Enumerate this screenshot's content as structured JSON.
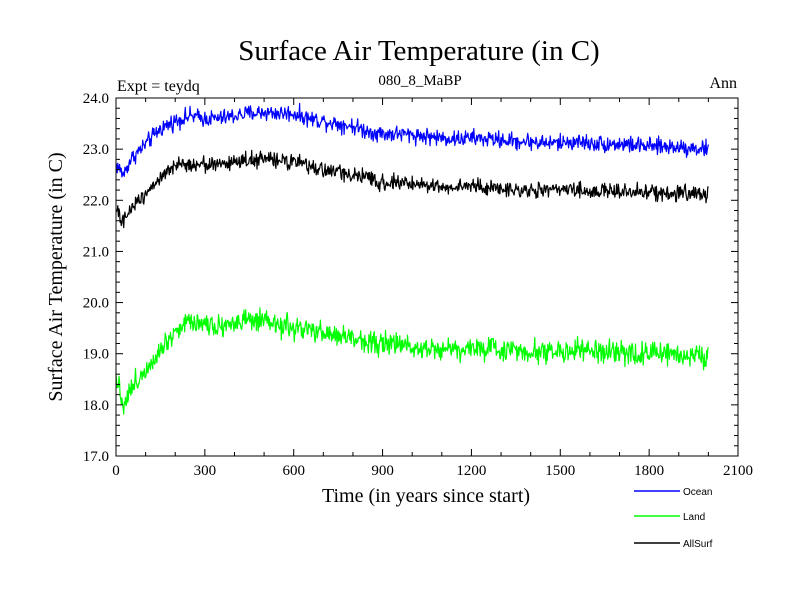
{
  "chart_data": {
    "type": "line",
    "title": "Surface Air Temperature (in C)",
    "subtitle": "080_8_MaBP",
    "experiment_label": "Expt = teydq",
    "period_label": "Ann",
    "xlabel": "Time (in years since start)",
    "ylabel": "Surface Air Temperature (in C)",
    "xlim": [
      0,
      2100
    ],
    "ylim": [
      17.0,
      24.0
    ],
    "x_ticks": [
      0,
      300,
      600,
      900,
      1200,
      1500,
      1800,
      2100
    ],
    "x_tick_labels": [
      "0",
      "300",
      "600",
      "900",
      "1200",
      "1500",
      "1800",
      "2100"
    ],
    "y_ticks": [
      17.0,
      18.0,
      19.0,
      20.0,
      21.0,
      22.0,
      23.0,
      24.0
    ],
    "y_tick_labels": [
      "17.0",
      "18.0",
      "19.0",
      "20.0",
      "21.0",
      "22.0",
      "23.0",
      "24.0"
    ],
    "grid": false,
    "legend_position": "bottom-right",
    "x": [
      0,
      25,
      50,
      100,
      150,
      200,
      250,
      300,
      350,
      400,
      450,
      500,
      550,
      600,
      650,
      700,
      750,
      800,
      850,
      900,
      950,
      1000,
      1050,
      1100,
      1150,
      1200,
      1250,
      1300,
      1350,
      1400,
      1450,
      1500,
      1550,
      1600,
      1650,
      1700,
      1750,
      1800,
      1850,
      1900,
      1950,
      2000
    ],
    "series": [
      {
        "name": "Ocean",
        "color": "#0000ff",
        "values": [
          22.7,
          22.5,
          22.8,
          23.1,
          23.4,
          23.55,
          23.65,
          23.6,
          23.6,
          23.65,
          23.7,
          23.72,
          23.7,
          23.7,
          23.6,
          23.55,
          23.5,
          23.45,
          23.35,
          23.3,
          23.3,
          23.28,
          23.25,
          23.22,
          23.2,
          23.22,
          23.2,
          23.18,
          23.15,
          23.15,
          23.12,
          23.12,
          23.15,
          23.12,
          23.1,
          23.1,
          23.08,
          23.05,
          23.05,
          23.05,
          23.02,
          23.0
        ]
      },
      {
        "name": "Land",
        "color": "#00ff00",
        "values": [
          18.6,
          18.0,
          18.3,
          18.7,
          19.1,
          19.45,
          19.65,
          19.6,
          19.55,
          19.6,
          19.65,
          19.6,
          19.55,
          19.5,
          19.45,
          19.4,
          19.35,
          19.3,
          19.25,
          19.2,
          19.18,
          19.15,
          19.12,
          19.1,
          19.1,
          19.1,
          19.1,
          19.08,
          19.08,
          19.05,
          19.05,
          19.05,
          19.05,
          19.05,
          19.02,
          19.0,
          19.0,
          19.0,
          19.0,
          18.98,
          18.98,
          18.97
        ]
      },
      {
        "name": "AllSurf",
        "color": "#000000",
        "values": [
          21.8,
          21.55,
          21.85,
          22.15,
          22.45,
          22.65,
          22.72,
          22.7,
          22.7,
          22.75,
          22.8,
          22.8,
          22.78,
          22.75,
          22.65,
          22.6,
          22.55,
          22.5,
          22.42,
          22.35,
          22.35,
          22.32,
          22.3,
          22.28,
          22.25,
          22.28,
          22.25,
          22.22,
          22.2,
          22.2,
          22.2,
          22.2,
          22.2,
          22.18,
          22.18,
          22.17,
          22.17,
          22.15,
          22.15,
          22.15,
          22.13,
          22.12
        ]
      }
    ]
  }
}
